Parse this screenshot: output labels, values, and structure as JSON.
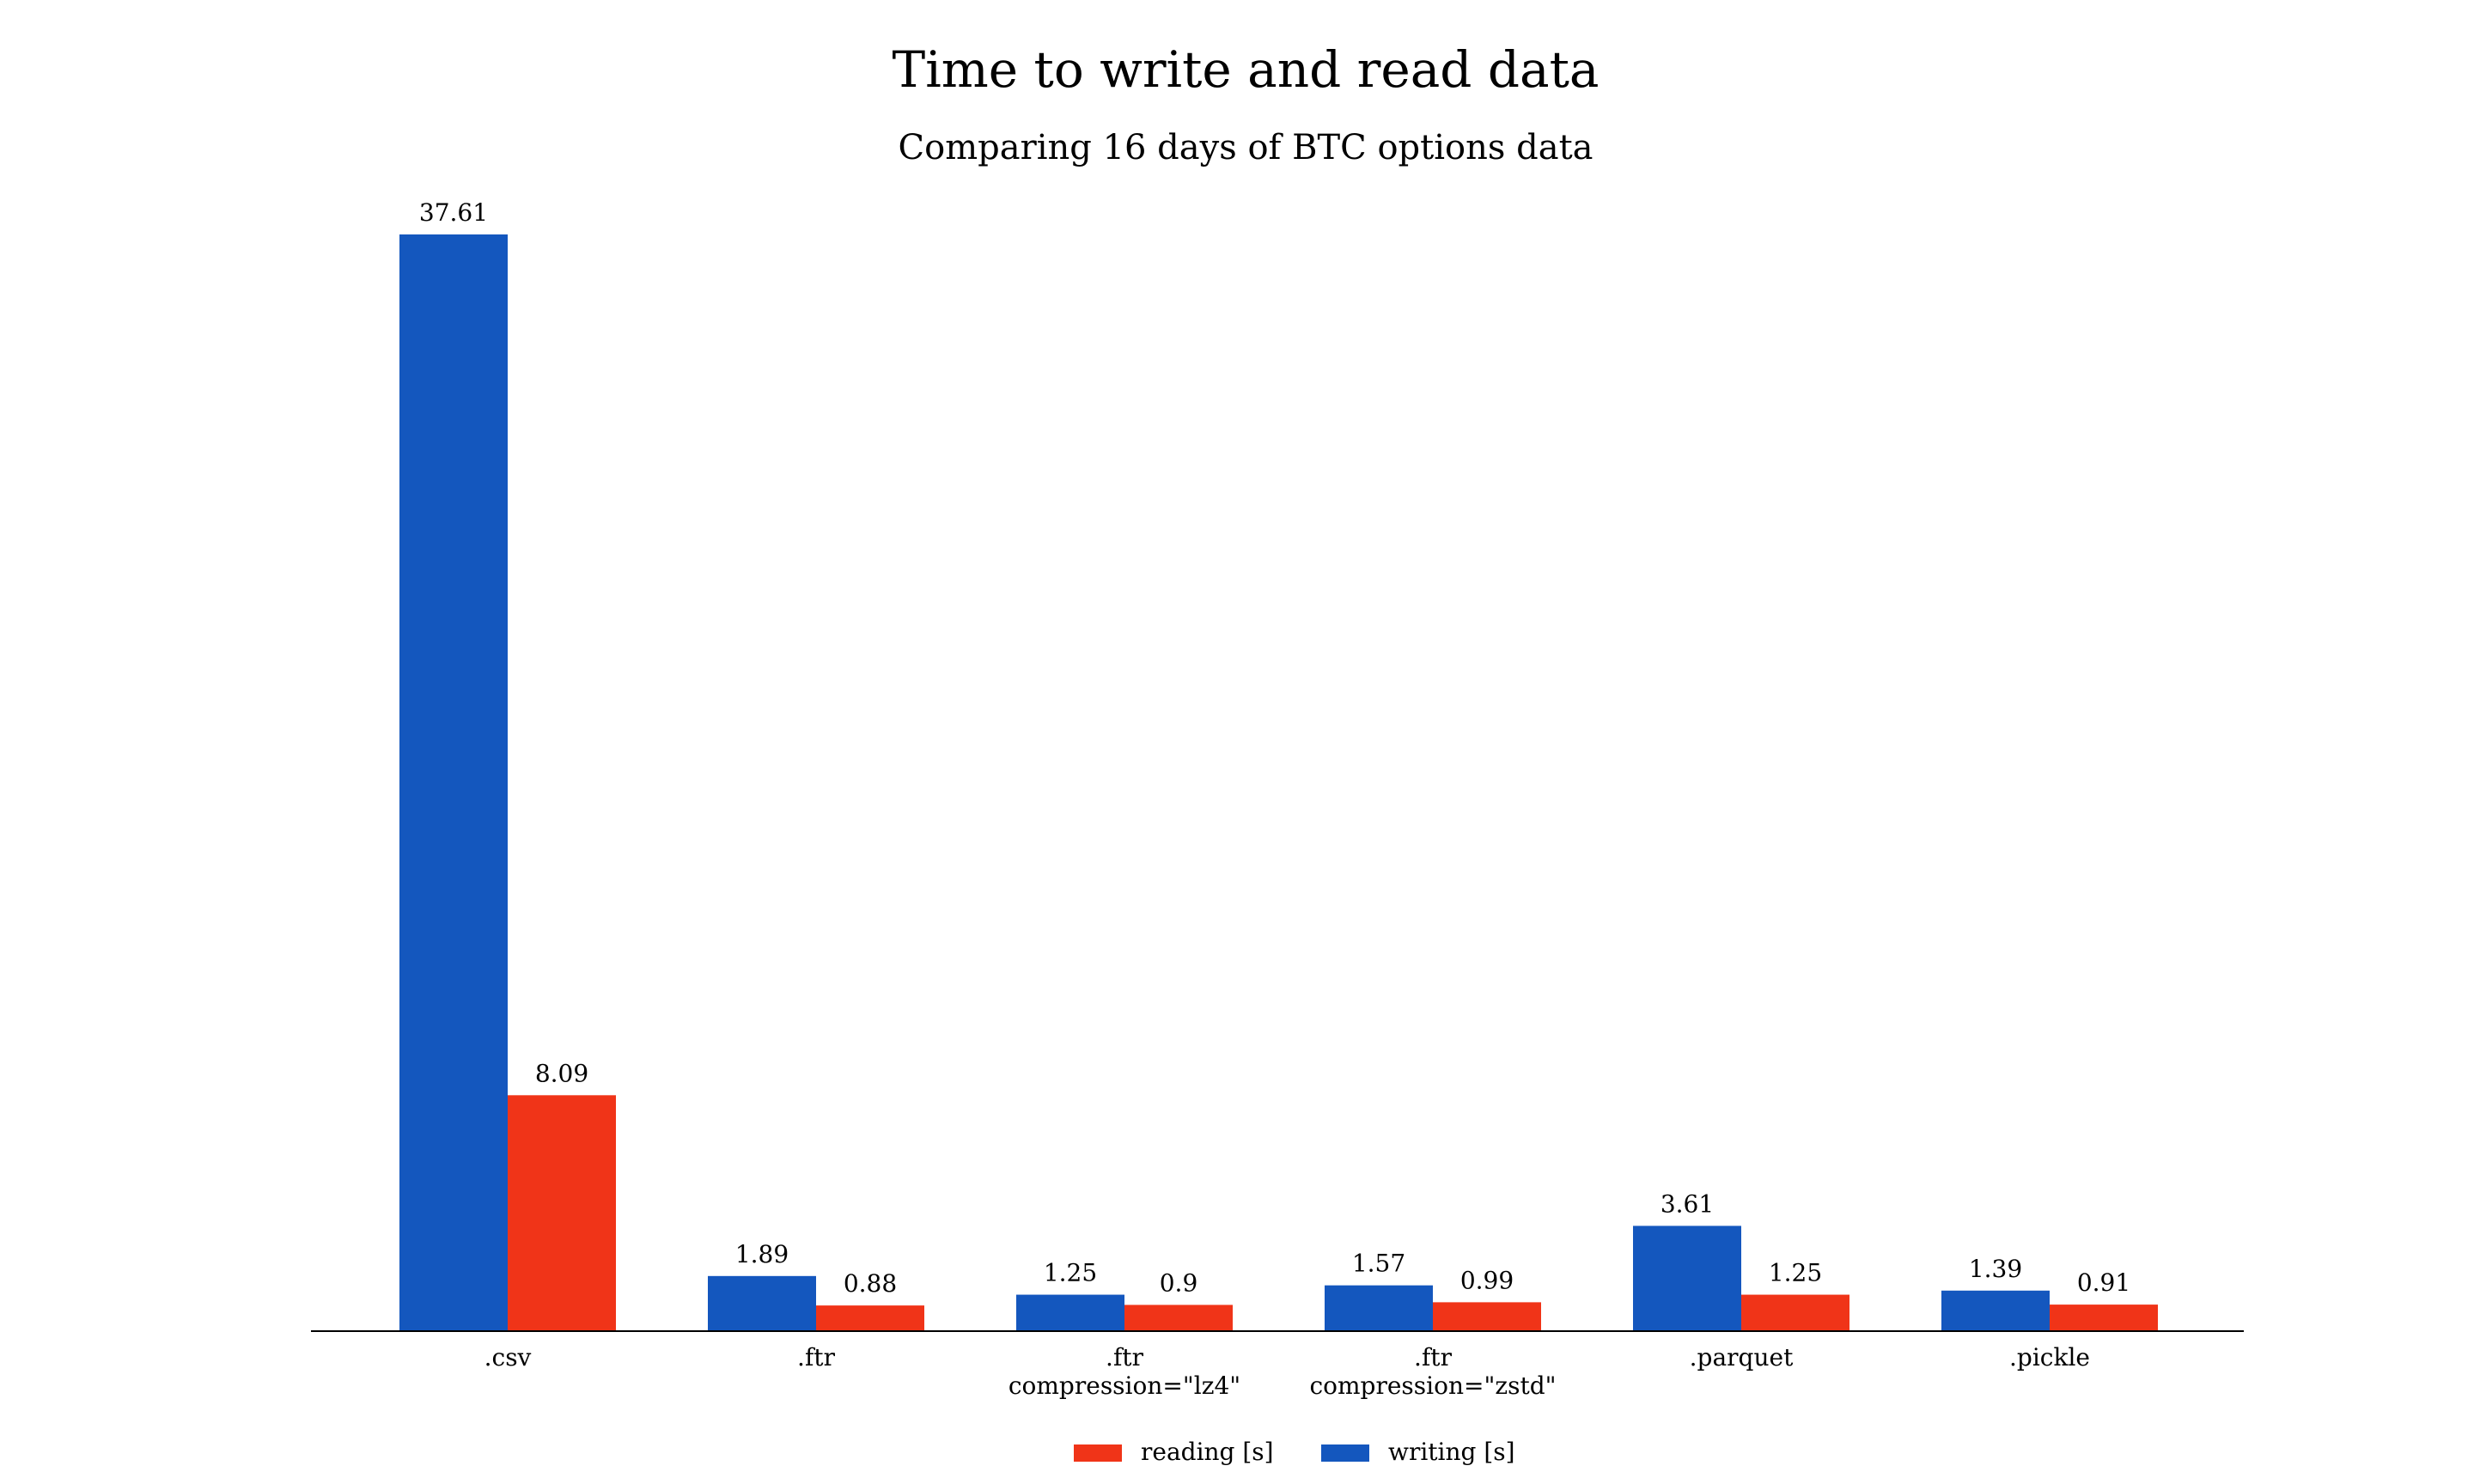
{
  "chart_data": {
    "type": "bar",
    "title": "Time to write and read data",
    "subtitle": "Comparing 16 days of BTC options data",
    "xlabel": "",
    "ylabel": "",
    "categories": [
      [
        ".csv"
      ],
      [
        ".ftr"
      ],
      [
        ".ftr",
        "compression=\"lz4\""
      ],
      [
        ".ftr",
        "compression=\"zstd\""
      ],
      [
        ".parquet"
      ],
      [
        ".pickle"
      ]
    ],
    "series": [
      {
        "name": "writing [s]",
        "color": "#1457be",
        "values": [
          37.61,
          1.89,
          1.25,
          1.57,
          3.61,
          1.39
        ],
        "labels": [
          "37.61",
          "1.89",
          "1.25",
          "1.57",
          "3.61",
          "1.39"
        ]
      },
      {
        "name": "reading [s]",
        "color": "#f03418",
        "values": [
          8.09,
          0.88,
          0.9,
          0.99,
          1.25,
          0.91
        ],
        "labels": [
          "8.09",
          "0.88",
          "0.9",
          "0.99",
          "1.25",
          "0.91"
        ]
      }
    ],
    "legend_order": [
      "reading [s]",
      "writing [s]"
    ],
    "legend_position": "bottom-center",
    "ylim": [
      0,
      37.61
    ],
    "grid": false,
    "y_axis_visible": false
  }
}
